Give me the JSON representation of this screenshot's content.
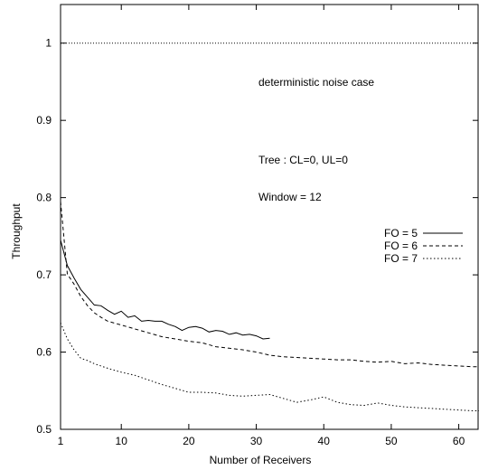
{
  "chart_data": {
    "type": "line",
    "title": "",
    "xlabel": "Number of Receivers",
    "ylabel": "Throughput",
    "xlim": [
      1,
      63
    ],
    "ylim": [
      0.5,
      1.05
    ],
    "xticks": [
      1,
      10,
      20,
      30,
      40,
      50,
      60
    ],
    "yticks": [
      0.5,
      0.6,
      0.7,
      0.8,
      0.9,
      1
    ],
    "ytick_labels": [
      "0.5",
      "0.6",
      "0.7",
      "0.8",
      "0.9",
      "1"
    ],
    "grid": false,
    "legend_position": "right",
    "annotations": [
      "deterministic noise case",
      "Tree : CL=0, UL=0",
      "Window = 12"
    ],
    "reference_line": {
      "y": 1.0,
      "style": "dotted"
    },
    "series": [
      {
        "name": "FO = 5",
        "style": "solid",
        "color": "#000000",
        "x": [
          1,
          2,
          3,
          4,
          5,
          6,
          7,
          8,
          9,
          10,
          11,
          12,
          13,
          14,
          15,
          16,
          17,
          18,
          19,
          20,
          21,
          22,
          23,
          24,
          25,
          26,
          27,
          28,
          29,
          30,
          31,
          32
        ],
        "y": [
          0.745,
          0.712,
          0.696,
          0.681,
          0.671,
          0.661,
          0.66,
          0.654,
          0.649,
          0.653,
          0.645,
          0.647,
          0.64,
          0.641,
          0.64,
          0.64,
          0.636,
          0.633,
          0.628,
          0.632,
          0.633,
          0.631,
          0.626,
          0.628,
          0.627,
          0.623,
          0.625,
          0.622,
          0.623,
          0.621,
          0.617,
          0.618
        ]
      },
      {
        "name": "FO = 6",
        "style": "dashed",
        "color": "#000000",
        "x": [
          1,
          2,
          3,
          4,
          5,
          6,
          7,
          8,
          10,
          12,
          14,
          16,
          18,
          20,
          22,
          24,
          26,
          28,
          30,
          32,
          34,
          36,
          38,
          40,
          42,
          44,
          46,
          48,
          50,
          52,
          54,
          56,
          58,
          60,
          62,
          63
        ],
        "y": [
          0.795,
          0.701,
          0.688,
          0.672,
          0.66,
          0.651,
          0.645,
          0.64,
          0.635,
          0.63,
          0.625,
          0.62,
          0.617,
          0.614,
          0.612,
          0.607,
          0.605,
          0.603,
          0.6,
          0.596,
          0.594,
          0.593,
          0.592,
          0.591,
          0.59,
          0.59,
          0.588,
          0.587,
          0.588,
          0.585,
          0.586,
          0.584,
          0.583,
          0.582,
          0.581,
          0.581
        ]
      },
      {
        "name": "FO = 7",
        "style": "dotted",
        "color": "#000000",
        "x": [
          1,
          2,
          3,
          4,
          5,
          6,
          8,
          10,
          12,
          14,
          16,
          18,
          20,
          22,
          24,
          26,
          28,
          30,
          32,
          34,
          36,
          38,
          40,
          42,
          44,
          46,
          48,
          50,
          52,
          54,
          56,
          58,
          60,
          62,
          63
        ],
        "y": [
          0.638,
          0.617,
          0.603,
          0.592,
          0.589,
          0.585,
          0.579,
          0.574,
          0.57,
          0.564,
          0.558,
          0.553,
          0.548,
          0.548,
          0.547,
          0.544,
          0.543,
          0.544,
          0.545,
          0.54,
          0.535,
          0.538,
          0.542,
          0.535,
          0.532,
          0.531,
          0.534,
          0.531,
          0.529,
          0.528,
          0.527,
          0.526,
          0.525,
          0.524,
          0.524
        ]
      }
    ]
  }
}
